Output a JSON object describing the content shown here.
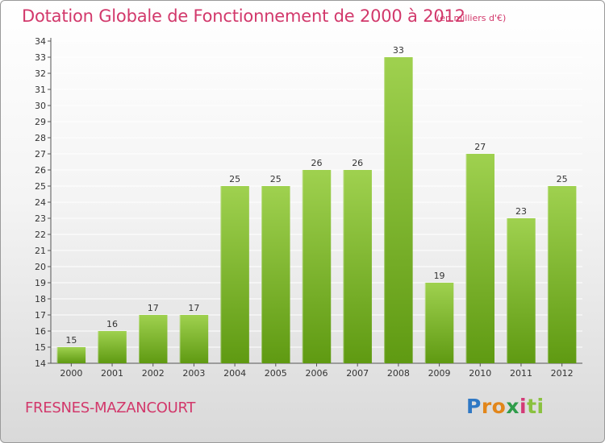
{
  "header": {
    "title": "Dotation Globale de Fonctionnement de 2000 à 2012",
    "unit_note": "(en milliers d'€)"
  },
  "footer": {
    "place": "FRESNES-MAZANCOURT",
    "logo": "Proxiti"
  },
  "colors": {
    "title": "#d2386b",
    "bar_top": "#9fd14f",
    "bar_bottom": "#5f9a12",
    "grid": "#ffffff"
  },
  "chart_data": {
    "type": "bar",
    "title": "Dotation Globale de Fonctionnement de 2000 à 2012",
    "subtitle": "(en milliers d'€)",
    "xlabel": "",
    "ylabel": "",
    "categories": [
      "2000",
      "2001",
      "2002",
      "2003",
      "2004",
      "2005",
      "2006",
      "2007",
      "2008",
      "2009",
      "2010",
      "2011",
      "2012"
    ],
    "values": [
      15,
      16,
      17,
      17,
      25,
      25,
      26,
      26,
      33,
      19,
      27,
      23,
      25
    ],
    "ylim": [
      14,
      34
    ],
    "yticks": [
      14,
      15,
      16,
      17,
      18,
      19,
      20,
      21,
      22,
      23,
      24,
      25,
      26,
      27,
      28,
      29,
      30,
      31,
      32,
      33,
      34
    ],
    "grid": true,
    "data_labels": true
  }
}
